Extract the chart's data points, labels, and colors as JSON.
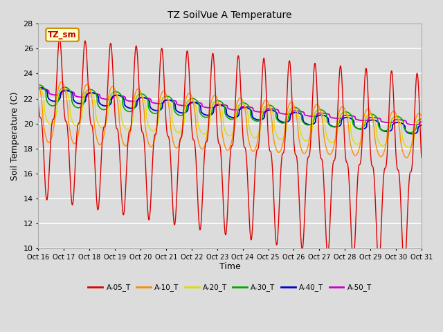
{
  "title": "TZ SoilVue A Temperature",
  "ylabel": "Soil Temperature (C)",
  "xlabel": "Time",
  "annotation": "TZ_sm",
  "ylim": [
    10,
    28
  ],
  "yticks": [
    10,
    12,
    14,
    16,
    18,
    20,
    22,
    24,
    26,
    28
  ],
  "xtick_labels": [
    "Oct 16",
    "Oct 17",
    "Oct 18",
    "Oct 19",
    "Oct 20",
    "Oct 21",
    "Oct 22",
    "Oct 23",
    "Oct 24",
    "Oct 25",
    "Oct 26",
    "Oct 27",
    "Oct 28",
    "Oct 29",
    "Oct 30",
    "Oct 31"
  ],
  "n_days": 15,
  "bg_color": "#dcdcdc",
  "series_colors": [
    "#dd0000",
    "#ff8c00",
    "#dddd00",
    "#00aa00",
    "#0000cc",
    "#cc00cc"
  ],
  "legend_labels": [
    "A-05_T",
    "A-10_T",
    "A-20_T",
    "A-30_T",
    "A-40_T",
    "A-50_T"
  ]
}
